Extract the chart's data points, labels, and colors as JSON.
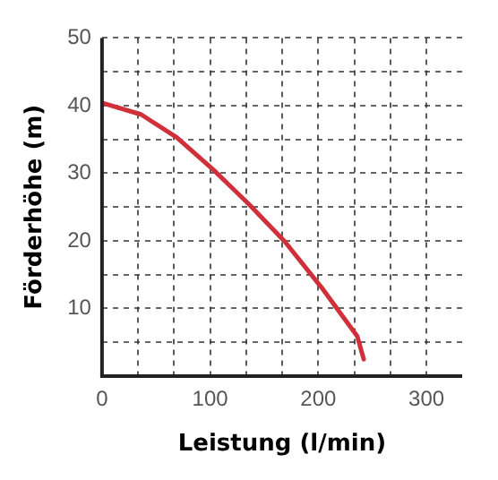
{
  "chart_data": {
    "type": "line",
    "xlabel": "Leistung (l/min)",
    "ylabel": "Förderhöhe (m)",
    "x": [
      0,
      36,
      69,
      103,
      136,
      169,
      203,
      236,
      242
    ],
    "series": [
      {
        "color": "#d0303a",
        "values": [
          40.4,
          38.7,
          35.3,
          30.5,
          25.4,
          19.9,
          13.1,
          5.9,
          2.5
        ]
      }
    ],
    "xlim": [
      0,
      333
    ],
    "ylim": [
      0,
      50
    ],
    "xticks": [
      0,
      {
        "value": 33.3,
        "label": null
      },
      {
        "value": 66.7,
        "label": null
      },
      100,
      {
        "value": 133.3,
        "label": null
      },
      {
        "value": 166.7,
        "label": null
      },
      200,
      {
        "value": 233.3,
        "label": null
      },
      {
        "value": 266.7,
        "label": null
      },
      300
    ],
    "yticks": [
      {
        "value": 0,
        "label": null
      },
      {
        "value": 5,
        "label": null
      },
      10,
      {
        "value": 15,
        "label": null
      },
      20,
      {
        "value": 25,
        "label": null
      },
      30,
      {
        "value": 35,
        "label": null
      },
      40,
      {
        "value": 45,
        "label": null
      },
      50
    ],
    "grid": true,
    "legend": false,
    "marker": "none",
    "line_style": "solid"
  }
}
